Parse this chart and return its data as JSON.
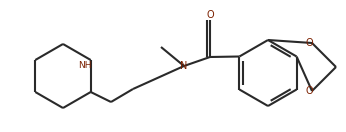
{
  "bg_color": "#ffffff",
  "line_color": "#2a2a2a",
  "heteroatom_color": "#7B2000",
  "bond_lw": 1.5,
  "figsize": [
    3.46,
    1.32
  ],
  "dpi": 100,
  "xlim": [
    0,
    346
  ],
  "ylim": [
    0,
    132
  ]
}
